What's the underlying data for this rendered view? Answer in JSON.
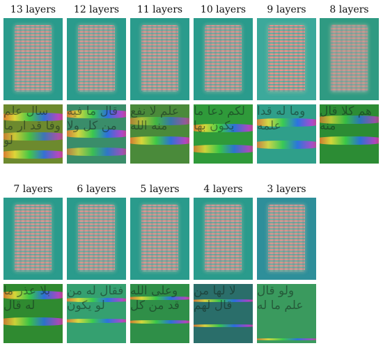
{
  "figure": {
    "row1": [
      {
        "label": "13 layers"
      },
      {
        "label": "12 layers"
      },
      {
        "label": "11 layers"
      },
      {
        "label": "10 layers"
      },
      {
        "label": "9 layers"
      },
      {
        "label": "8 layers"
      }
    ],
    "row2": [
      {
        "label": "7 layers"
      },
      {
        "label": "6 layers"
      },
      {
        "label": "5 layers"
      },
      {
        "label": "4 layers"
      },
      {
        "label": "3 layers"
      }
    ]
  },
  "colors": {
    "page_teal": "#2a9b8c",
    "stripe_pink": "#e7a0a2",
    "crop_green": "#2f8f48"
  }
}
